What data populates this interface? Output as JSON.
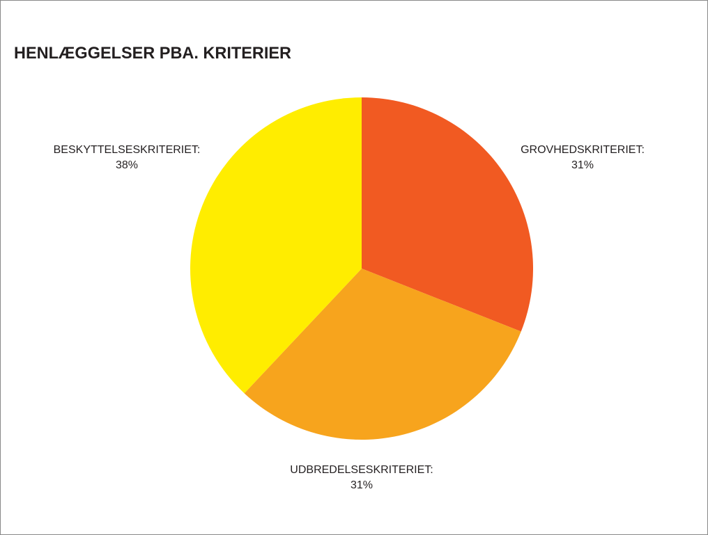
{
  "chart_data": {
    "type": "pie",
    "title": "HENLÆGGELSER PBA. KRITERIER",
    "categories": [
      "GROVHEDSKRITERIET:",
      "UDBREDELSESKRITERIET:",
      "BESKYTTELSESKRITERIET:"
    ],
    "values": [
      31,
      31,
      38
    ],
    "value_labels": [
      "31%",
      "31%",
      "38%"
    ],
    "colors": [
      "#f15a22",
      "#f7a41d",
      "#ffed00"
    ]
  }
}
